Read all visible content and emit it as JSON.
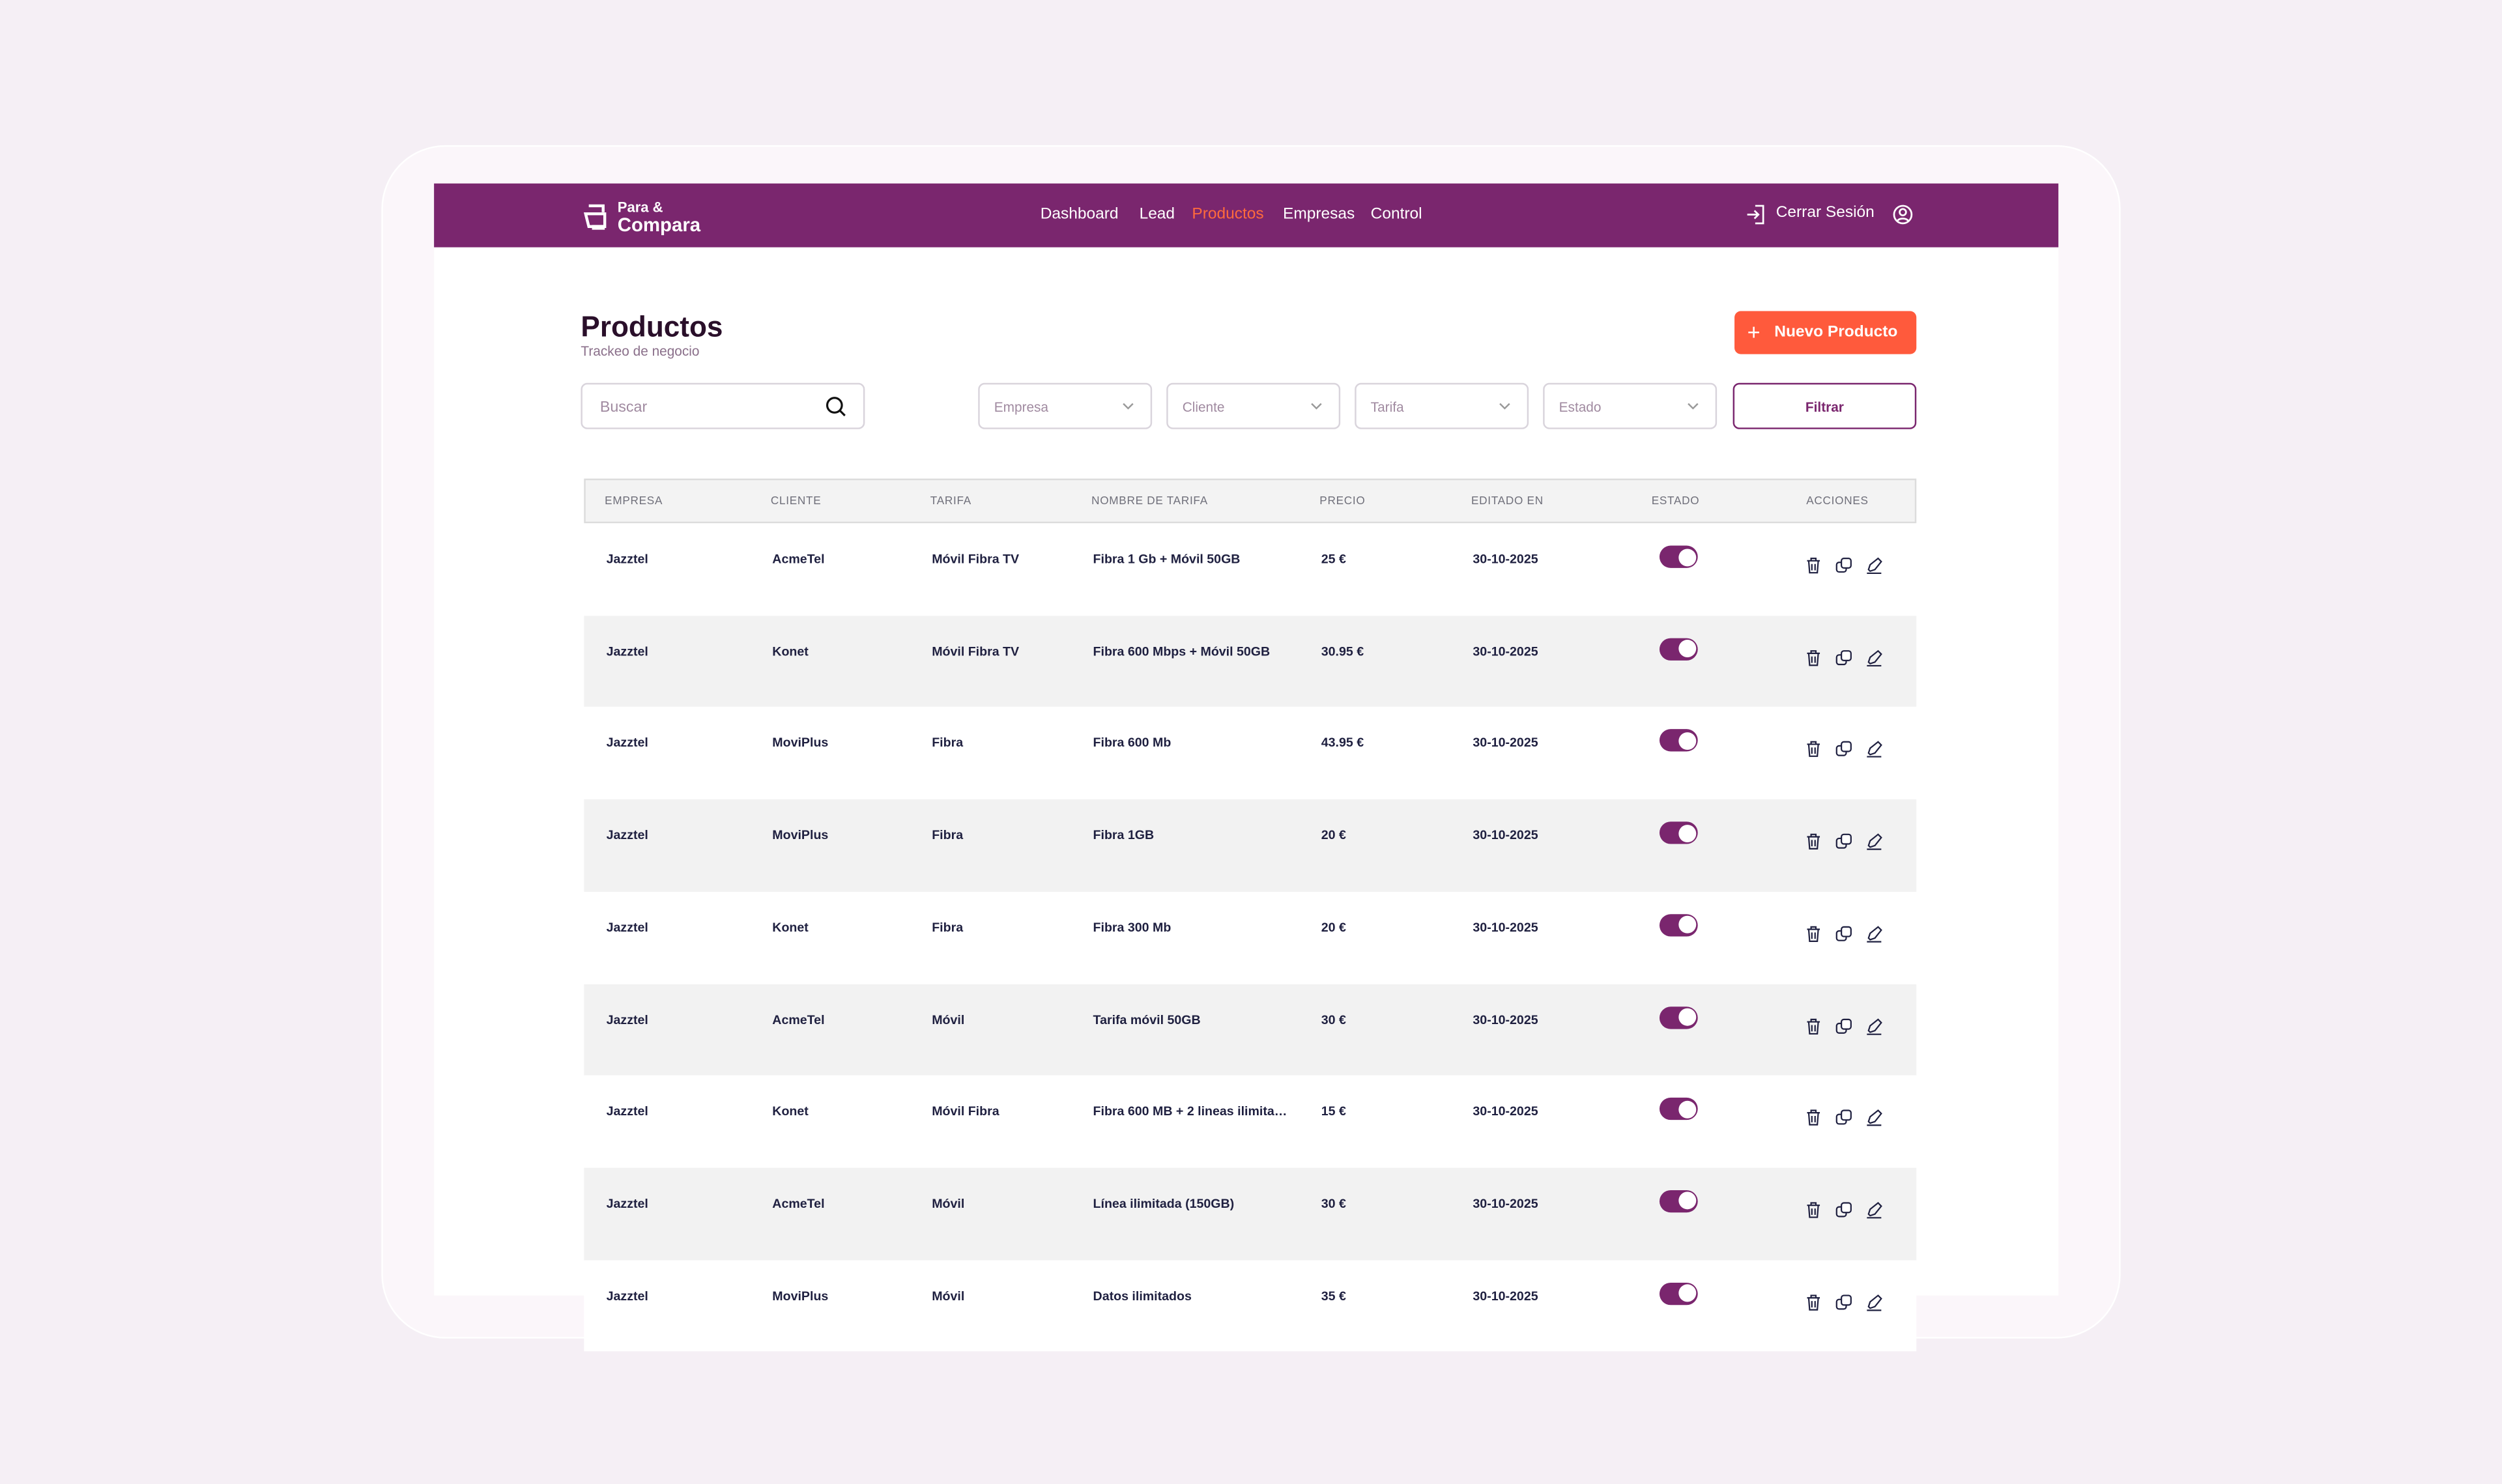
{
  "header": {
    "logo": {
      "line1": "Para &",
      "line2": "Compara"
    },
    "nav": [
      "Dashboard",
      "Lead",
      "Productos",
      "Empresas",
      "Control"
    ],
    "active_nav": 2,
    "logout": "Cerrar Sesión"
  },
  "page": {
    "title": "Productos",
    "subtitle": "Trackeo de negocio",
    "new_button": "Nuevo Producto"
  },
  "filters": {
    "search": "Buscar",
    "dropdowns": [
      "Empresa",
      "Cliente",
      "Tarifa",
      "Estado"
    ],
    "apply": "Filtrar"
  },
  "table": {
    "columns": [
      "EMPRESA",
      "CLIENTE",
      "TARIFA",
      "NOMBRE DE TARIFA",
      "PRECIO",
      "EDITADO EN",
      "ESTADO",
      "ACCIONES"
    ],
    "rows": [
      {
        "cells": [
          "Jazztel",
          "AcmeTel",
          "Móvil Fibra TV",
          "Fibra 1 Gb + Móvil 50GB",
          "25  €",
          "30-10-2025"
        ],
        "active": true
      },
      {
        "cells": [
          "Jazztel",
          "Konet",
          "Móvil Fibra TV",
          "Fibra 600 Mbps + Móvil 50GB",
          "30.95 €",
          "30-10-2025"
        ],
        "active": true
      },
      {
        "cells": [
          "Jazztel",
          "MoviPlus",
          "Fibra",
          "Fibra 600 Mb",
          "43.95 €",
          "30-10-2025"
        ],
        "active": true
      },
      {
        "cells": [
          "Jazztel",
          "MoviPlus",
          "Fibra",
          "Fibra 1GB",
          "20 €",
          "30-10-2025"
        ],
        "active": true
      },
      {
        "cells": [
          "Jazztel",
          "Konet",
          "Fibra",
          "Fibra 300 Mb",
          "20 €",
          "30-10-2025"
        ],
        "active": true
      },
      {
        "cells": [
          "Jazztel",
          "AcmeTel",
          "Móvil",
          "Tarifa móvil 50GB",
          "30 €",
          "30-10-2025"
        ],
        "active": true
      },
      {
        "cells": [
          "Jazztel",
          "Konet",
          "Móvil Fibra",
          "Fibra 600 MB + 2 lineas ilimita…",
          "15 €",
          "30-10-2025"
        ],
        "active": true
      },
      {
        "cells": [
          "Jazztel",
          "AcmeTel",
          "Móvil",
          "Línea ilimitada (150GB)",
          "30 €",
          "30-10-2025"
        ],
        "active": true
      },
      {
        "cells": [
          "Jazztel",
          "MoviPlus",
          "Móvil",
          "Datos ilimitados",
          "35 €",
          "30-10-2025"
        ],
        "active": true
      }
    ]
  }
}
